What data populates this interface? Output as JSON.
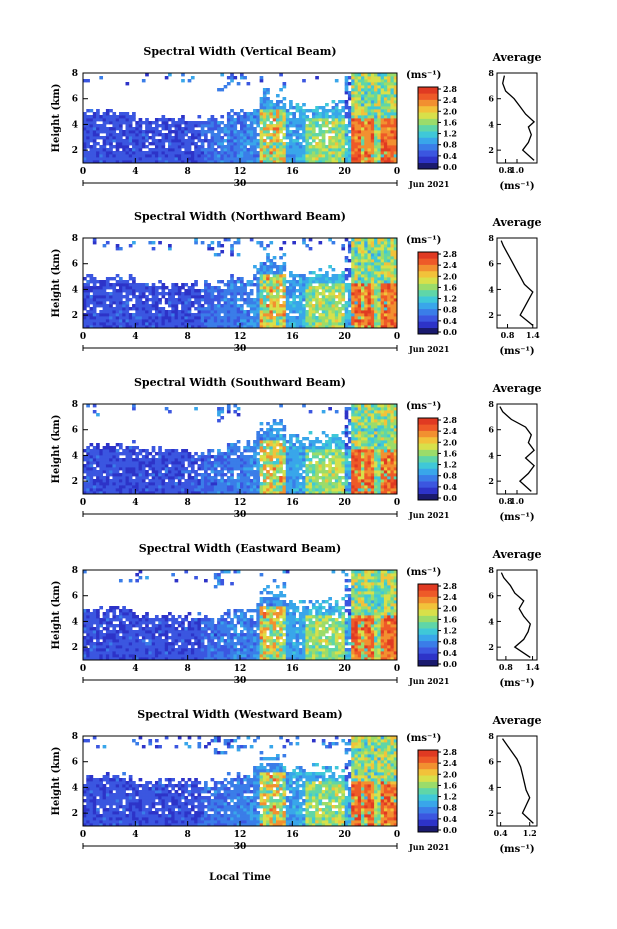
{
  "figure": {
    "xlabel": "Local Time",
    "date_label": "30",
    "month_label": "Jun 2021",
    "ylabel": "Height (km)",
    "cbar_unit": "(ms⁻¹)",
    "avg_title": "Average",
    "avg_xlabel": "(ms⁻¹)",
    "colormap": [
      "#1a1a6e",
      "#2d33c8",
      "#3b56e0",
      "#3a7de8",
      "#39a6ea",
      "#3fc8d8",
      "#5fd6a8",
      "#9bdc6a",
      "#d8e04a",
      "#f2c23a",
      "#f29030",
      "#ee5a28",
      "#e03a22"
    ]
  },
  "chart_data": [
    {
      "type": "heatmap",
      "title": "Spectral Width (Vertical Beam)",
      "xticks": [
        "0",
        "4",
        "8",
        "12",
        "16",
        "20",
        "0"
      ],
      "yticks": [
        "2",
        "4",
        "6",
        "8"
      ],
      "xlim": [
        0,
        24
      ],
      "ylim": [
        1.0,
        8.0
      ],
      "cbar_ticks": [
        "0.0",
        "0.4",
        "0.8",
        "1.2",
        "1.6",
        "2.0",
        "2.4",
        "2.8"
      ],
      "profile": {
        "xticks": [
          "0.8",
          "1.0"
        ],
        "xlim": [
          0.65,
          1.35
        ],
        "heights": [
          1.2,
          2.0,
          2.6,
          3.2,
          3.8,
          4.2,
          4.8,
          5.4,
          6.0,
          6.6,
          7.2,
          7.8
        ],
        "values": [
          1.3,
          1.1,
          1.2,
          1.25,
          1.2,
          1.3,
          1.15,
          1.05,
          0.95,
          0.8,
          0.75,
          0.78
        ]
      }
    },
    {
      "type": "heatmap",
      "title": "Spectral Width (Northward Beam)",
      "xticks": [
        "0",
        "4",
        "8",
        "12",
        "16",
        "20",
        "0"
      ],
      "yticks": [
        "2",
        "4",
        "6",
        "8"
      ],
      "xlim": [
        0,
        24
      ],
      "ylim": [
        1.0,
        8.0
      ],
      "cbar_ticks": [
        "0.0",
        "0.4",
        "0.8",
        "1.2",
        "1.6",
        "2.0",
        "2.4",
        "2.8"
      ],
      "profile": {
        "xticks": [
          "0.8",
          "1.4"
        ],
        "xlim": [
          0.55,
          1.5
        ],
        "heights": [
          1.2,
          2.0,
          2.6,
          3.2,
          3.8,
          4.4,
          5.0,
          5.6,
          6.2,
          6.8,
          7.4,
          7.8
        ],
        "values": [
          1.4,
          1.1,
          1.2,
          1.3,
          1.4,
          1.2,
          1.1,
          1.0,
          0.9,
          0.8,
          0.7,
          0.65
        ]
      }
    },
    {
      "type": "heatmap",
      "title": "Spectral Width (Southward Beam)",
      "xticks": [
        "0",
        "4",
        "8",
        "12",
        "16",
        "20",
        "0"
      ],
      "yticks": [
        "2",
        "4",
        "6",
        "8"
      ],
      "xlim": [
        0,
        24
      ],
      "ylim": [
        1.0,
        8.0
      ],
      "cbar_ticks": [
        "0.0",
        "0.4",
        "0.8",
        "1.2",
        "1.6",
        "2.0",
        "2.4",
        "2.8"
      ],
      "profile": {
        "xticks": [
          "0.8",
          "1.0"
        ],
        "xlim": [
          0.65,
          1.35
        ],
        "heights": [
          1.2,
          2.0,
          2.6,
          3.2,
          3.8,
          4.4,
          5.0,
          5.6,
          6.2,
          6.8,
          7.4,
          7.8
        ],
        "values": [
          1.25,
          1.05,
          1.2,
          1.3,
          1.15,
          1.3,
          1.2,
          1.25,
          1.15,
          0.9,
          0.75,
          0.7
        ]
      }
    },
    {
      "type": "heatmap",
      "title": "Spectral Width (Eastward Beam)",
      "xticks": [
        "0",
        "4",
        "8",
        "12",
        "16",
        "20",
        "0"
      ],
      "yticks": [
        "2",
        "4",
        "6",
        "8"
      ],
      "xlim": [
        0,
        24
      ],
      "ylim": [
        1.0,
        8.0
      ],
      "cbar_ticks": [
        "0.0",
        "0.4",
        "0.8",
        "1.2",
        "1.6",
        "2.0",
        "2.4",
        "2.8"
      ],
      "profile": {
        "xticks": [
          "0.8",
          "1.4"
        ],
        "xlim": [
          0.6,
          1.5
        ],
        "heights": [
          1.2,
          2.0,
          2.6,
          3.2,
          3.8,
          4.4,
          5.0,
          5.6,
          6.2,
          6.8,
          7.4,
          7.8
        ],
        "values": [
          1.35,
          1.0,
          1.2,
          1.3,
          1.35,
          1.2,
          1.1,
          1.2,
          1.0,
          0.9,
          0.75,
          0.7
        ]
      }
    },
    {
      "type": "heatmap",
      "title": "Spectral Width (Westward Beam)",
      "xticks": [
        "0",
        "4",
        "8",
        "12",
        "16",
        "20",
        "0"
      ],
      "yticks": [
        "2",
        "4",
        "6",
        "8"
      ],
      "xlim": [
        0,
        24
      ],
      "ylim": [
        1.0,
        8.0
      ],
      "cbar_ticks": [
        "0.0",
        "0.4",
        "0.8",
        "1.2",
        "1.6",
        "2.0",
        "2.4",
        "2.8"
      ],
      "profile": {
        "xticks": [
          "0.4",
          "1.2"
        ],
        "xlim": [
          0.3,
          1.4
        ],
        "heights": [
          1.2,
          2.0,
          2.6,
          3.2,
          3.8,
          4.4,
          5.0,
          5.6,
          6.2,
          6.8,
          7.4,
          7.8
        ],
        "values": [
          1.3,
          1.0,
          1.1,
          1.2,
          1.1,
          1.05,
          1.0,
          0.95,
          0.85,
          0.7,
          0.55,
          0.45
        ]
      }
    }
  ]
}
